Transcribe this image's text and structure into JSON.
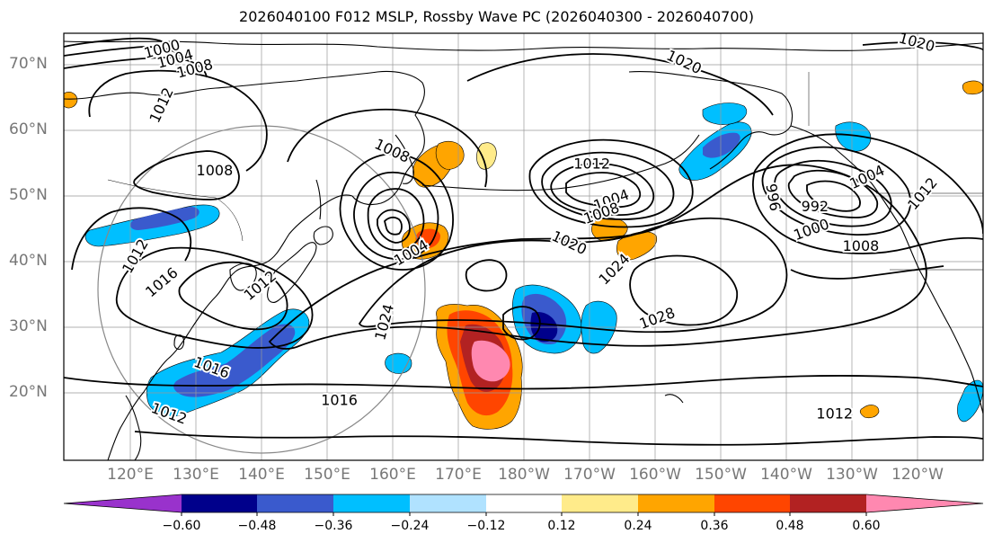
{
  "title": "2026040100 F012 MSLP, Rossby Wave PC (2026040300 - 2026040700)",
  "lat_labels": [
    "70°N",
    "60°N",
    "50°N",
    "40°N",
    "30°N",
    "20°N"
  ],
  "lon_labels": [
    "120°E",
    "130°E",
    "140°E",
    "150°E",
    "160°E",
    "170°E",
    "180°W",
    "170°W",
    "160°W",
    "150°W",
    "140°W",
    "130°W",
    "120°W"
  ],
  "contour_labels": [
    {
      "text": "1000",
      "lon": 125,
      "lat": 72.5,
      "rot": -15
    },
    {
      "text": "1004",
      "lon": 127,
      "lat": 71,
      "rot": -15
    },
    {
      "text": "1008",
      "lon": 130,
      "lat": 69.5,
      "rot": -15
    },
    {
      "text": "1012",
      "lon": 125,
      "lat": 64,
      "rot": -65
    },
    {
      "text": "1008",
      "lon": 133,
      "lat": 54,
      "rot": 0
    },
    {
      "text": "1008",
      "lon": 160,
      "lat": 57,
      "rot": 25
    },
    {
      "text": "1012",
      "lon": 121,
      "lat": 41,
      "rot": -60
    },
    {
      "text": "1016",
      "lon": 125,
      "lat": 37,
      "rot": -40
    },
    {
      "text": "1012",
      "lon": 140,
      "lat": 36.5,
      "rot": -40
    },
    {
      "text": "1004",
      "lon": 163,
      "lat": 41.5,
      "rot": -30
    },
    {
      "text": "1024",
      "lon": 159,
      "lat": 31,
      "rot": -75
    },
    {
      "text": "1016",
      "lon": 132.5,
      "lat": 24,
      "rot": 20
    },
    {
      "text": "1016",
      "lon": 152,
      "lat": 19,
      "rot": 0
    },
    {
      "text": "1012",
      "lon": 126,
      "lat": 17,
      "rot": 20
    },
    {
      "text": "1012",
      "lon": -169.5,
      "lat": 55,
      "rot": 0
    },
    {
      "text": "1004",
      "lon": -166.5,
      "lat": 49.5,
      "rot": -20
    },
    {
      "text": "1008",
      "lon": -168,
      "lat": 47.5,
      "rot": -20
    },
    {
      "text": "1020",
      "lon": -173,
      "lat": 43,
      "rot": 25
    },
    {
      "text": "1024",
      "lon": -166,
      "lat": 39,
      "rot": -45
    },
    {
      "text": "1028",
      "lon": -159.5,
      "lat": 31.5,
      "rot": -20
    },
    {
      "text": "1020",
      "lon": -155.5,
      "lat": 70.5,
      "rot": 25
    },
    {
      "text": "1020",
      "lon": -120,
      "lat": 73.5,
      "rot": 15
    },
    {
      "text": "996",
      "lon": -142,
      "lat": 50,
      "rot": 80
    },
    {
      "text": "992",
      "lon": -135.5,
      "lat": 48.5,
      "rot": 0
    },
    {
      "text": "1000",
      "lon": -136,
      "lat": 45,
      "rot": -20
    },
    {
      "text": "1004",
      "lon": -127.5,
      "lat": 53,
      "rot": -25
    },
    {
      "text": "1008",
      "lon": -128.5,
      "lat": 42.5,
      "rot": 0
    },
    {
      "text": "1012",
      "lon": -132.5,
      "lat": 17,
      "rot": 0
    },
    {
      "text": "1012",
      "lon": -119,
      "lat": 50.5,
      "rot": -50
    }
  ],
  "colorbar": {
    "ticks": [
      "−0.60",
      "−0.48",
      "−0.36",
      "−0.24",
      "−0.12",
      "0.12",
      "0.24",
      "0.36",
      "0.48",
      "0.60"
    ],
    "colors": [
      "#9932cc",
      "#00008b",
      "#3a5acd",
      "#00bfff",
      "#b0e2ff",
      "#ffffff",
      "#ffeb8a",
      "#ffa500",
      "#ff4500",
      "#b22222",
      "#ff88b0"
    ]
  }
}
